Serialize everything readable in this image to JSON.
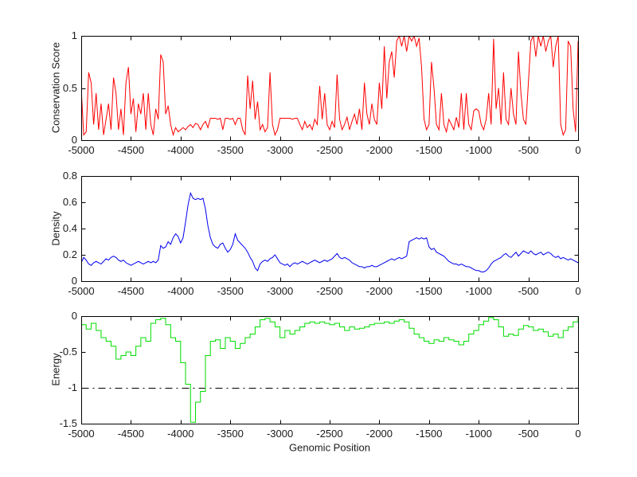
{
  "figure": {
    "background": "#ffffff"
  },
  "chart_data": [
    {
      "id": "conservation",
      "type": "line",
      "title": "",
      "ylabel": "Conservation Score",
      "xlabel": "",
      "xlim": [
        -5000,
        0
      ],
      "ylim": [
        0,
        1
      ],
      "xticks": [
        -5000,
        -4500,
        -4000,
        -3500,
        -3000,
        -2500,
        -2000,
        -1500,
        -1000,
        -500,
        0
      ],
      "yticks": [
        0,
        0.5,
        1
      ],
      "line_color": "#ff0000",
      "grid": false,
      "legend": null,
      "x_start": -5000,
      "x_step": 25,
      "values": [
        0.5,
        0.05,
        0.08,
        0.65,
        0.55,
        0.15,
        0.45,
        0.1,
        0.35,
        0.05,
        0.2,
        0.35,
        0.1,
        0.6,
        0.45,
        0.1,
        0.3,
        0.05,
        0.55,
        0.7,
        0.25,
        0.4,
        0.08,
        0.35,
        0.25,
        0.45,
        0.1,
        0.45,
        0.15,
        0.05,
        0.3,
        0.2,
        0.82,
        0.75,
        0.25,
        0.33,
        0.15,
        0.05,
        0.12,
        0.08,
        0.1,
        0.12,
        0.1,
        0.13,
        0.15,
        0.12,
        0.16,
        0.15,
        0.1,
        0.15,
        0.18,
        0.12,
        0.21,
        0.21,
        0.21,
        0.2,
        0.21,
        0.1,
        0.21,
        0.21,
        0.2,
        0.21,
        0.15,
        0.21,
        0.21,
        0.1,
        0.05,
        0.62,
        0.3,
        0.57,
        0.2,
        0.37,
        0.1,
        0.15,
        0.08,
        0.12,
        0.65,
        0.15,
        0.05,
        0.1,
        0.21,
        0.21,
        0.21,
        0.21,
        0.21,
        0.2,
        0.21,
        0.21,
        0.15,
        0.1,
        0.18,
        0.12,
        0.15,
        0.1,
        0.2,
        0.15,
        0.52,
        0.2,
        0.45,
        0.15,
        0.1,
        0.18,
        0.12,
        0.63,
        0.2,
        0.1,
        0.15,
        0.22,
        0.1,
        0.18,
        0.25,
        0.15,
        0.3,
        0.1,
        0.55,
        0.25,
        0.15,
        0.35,
        0.2,
        0.15,
        0.55,
        0.3,
        0.9,
        0.4,
        0.75,
        0.85,
        0.6,
        0.95,
        1.0,
        0.9,
        1.0,
        0.85,
        1.0,
        0.95,
        1.0,
        0.9,
        0.98,
        0.7,
        0.2,
        0.1,
        0.15,
        0.75,
        0.5,
        0.15,
        0.1,
        0.45,
        0.15,
        0.08,
        0.2,
        0.15,
        0.1,
        0.22,
        0.12,
        0.45,
        0.1,
        0.45,
        0.15,
        0.1,
        0.28,
        0.3,
        0.28,
        0.15,
        0.1,
        0.2,
        0.45,
        0.15,
        0.97,
        0.3,
        0.5,
        0.15,
        0.65,
        0.2,
        0.15,
        0.5,
        0.25,
        0.15,
        0.85,
        0.45,
        0.2,
        0.15,
        0.55,
        0.95,
        1.0,
        0.8,
        1.0,
        0.9,
        1.0,
        0.85,
        0.95,
        1.0,
        0.7,
        0.9,
        1.0,
        0.15,
        0.05,
        0.1,
        0.95,
        0.9,
        0.3,
        0.08,
        0.95
      ]
    },
    {
      "id": "density",
      "type": "line",
      "title": "",
      "ylabel": "Density",
      "xlabel": "",
      "xlim": [
        -5000,
        0
      ],
      "ylim": [
        0,
        0.8
      ],
      "xticks": [
        -5000,
        -4500,
        -4000,
        -3500,
        -3000,
        -2500,
        -2000,
        -1500,
        -1000,
        -500,
        0
      ],
      "yticks": [
        0,
        0.2,
        0.4,
        0.6,
        0.8
      ],
      "line_color": "#0000ee",
      "grid": false,
      "legend": null,
      "x_start": -5000,
      "x_step": 25,
      "values": [
        0.14,
        0.18,
        0.16,
        0.13,
        0.12,
        0.14,
        0.15,
        0.14,
        0.13,
        0.15,
        0.17,
        0.16,
        0.18,
        0.19,
        0.18,
        0.16,
        0.15,
        0.16,
        0.14,
        0.13,
        0.12,
        0.13,
        0.14,
        0.15,
        0.14,
        0.13,
        0.14,
        0.15,
        0.14,
        0.15,
        0.14,
        0.16,
        0.27,
        0.25,
        0.26,
        0.3,
        0.28,
        0.33,
        0.36,
        0.34,
        0.29,
        0.33,
        0.45,
        0.58,
        0.67,
        0.63,
        0.62,
        0.63,
        0.62,
        0.63,
        0.55,
        0.42,
        0.33,
        0.28,
        0.26,
        0.25,
        0.28,
        0.29,
        0.25,
        0.22,
        0.24,
        0.28,
        0.36,
        0.31,
        0.29,
        0.27,
        0.25,
        0.22,
        0.18,
        0.15,
        0.1,
        0.08,
        0.13,
        0.15,
        0.16,
        0.15,
        0.17,
        0.18,
        0.2,
        0.17,
        0.14,
        0.13,
        0.12,
        0.13,
        0.11,
        0.13,
        0.14,
        0.13,
        0.14,
        0.15,
        0.14,
        0.13,
        0.14,
        0.15,
        0.16,
        0.15,
        0.14,
        0.15,
        0.16,
        0.15,
        0.16,
        0.17,
        0.19,
        0.21,
        0.18,
        0.17,
        0.18,
        0.17,
        0.16,
        0.14,
        0.13,
        0.12,
        0.11,
        0.11,
        0.1,
        0.11,
        0.11,
        0.12,
        0.11,
        0.11,
        0.12,
        0.13,
        0.14,
        0.15,
        0.16,
        0.17,
        0.16,
        0.17,
        0.18,
        0.17,
        0.18,
        0.19,
        0.3,
        0.31,
        0.32,
        0.33,
        0.32,
        0.33,
        0.32,
        0.33,
        0.26,
        0.24,
        0.25,
        0.22,
        0.21,
        0.2,
        0.19,
        0.17,
        0.15,
        0.14,
        0.13,
        0.13,
        0.12,
        0.13,
        0.12,
        0.11,
        0.11,
        0.1,
        0.09,
        0.08,
        0.08,
        0.07,
        0.07,
        0.08,
        0.1,
        0.13,
        0.15,
        0.16,
        0.17,
        0.18,
        0.2,
        0.21,
        0.19,
        0.18,
        0.2,
        0.22,
        0.19,
        0.21,
        0.23,
        0.22,
        0.21,
        0.23,
        0.21,
        0.2,
        0.21,
        0.22,
        0.2,
        0.21,
        0.22,
        0.21,
        0.19,
        0.18,
        0.19,
        0.17,
        0.18,
        0.17,
        0.16,
        0.17,
        0.16,
        0.15,
        0.14
      ]
    },
    {
      "id": "energy",
      "type": "step",
      "title": "",
      "ylabel": "Energy",
      "xlabel": "Genomic Position",
      "xlim": [
        -5000,
        0
      ],
      "ylim": [
        -1.5,
        0
      ],
      "xticks": [
        -5000,
        -4500,
        -4000,
        -3500,
        -3000,
        -2500,
        -2000,
        -1500,
        -1000,
        -500,
        0
      ],
      "yticks": [
        -1.5,
        -1,
        -0.5,
        0
      ],
      "line_color": "#00dd00",
      "grid": false,
      "legend": null,
      "threshold": {
        "value": -1,
        "color": "#000000",
        "style": "dash-dot"
      },
      "x_start": -5000,
      "x_step": 50,
      "values": [
        -0.12,
        -0.18,
        -0.1,
        -0.2,
        -0.3,
        -0.35,
        -0.42,
        -0.6,
        -0.55,
        -0.5,
        -0.55,
        -0.42,
        -0.3,
        -0.35,
        -0.1,
        -0.05,
        -0.03,
        -0.12,
        -0.3,
        -0.35,
        -0.65,
        -0.95,
        -1.48,
        -1.2,
        -1.05,
        -0.55,
        -0.35,
        -0.33,
        -0.45,
        -0.3,
        -0.35,
        -0.45,
        -0.38,
        -0.3,
        -0.25,
        -0.15,
        -0.05,
        -0.03,
        -0.08,
        -0.15,
        -0.3,
        -0.2,
        -0.25,
        -0.2,
        -0.15,
        -0.1,
        -0.08,
        -0.1,
        -0.08,
        -0.1,
        -0.12,
        -0.1,
        -0.15,
        -0.2,
        -0.15,
        -0.18,
        -0.17,
        -0.15,
        -0.12,
        -0.1,
        -0.1,
        -0.08,
        -0.1,
        -0.07,
        -0.05,
        -0.08,
        -0.17,
        -0.25,
        -0.3,
        -0.35,
        -0.38,
        -0.33,
        -0.35,
        -0.3,
        -0.33,
        -0.35,
        -0.4,
        -0.35,
        -0.25,
        -0.2,
        -0.12,
        -0.07,
        -0.02,
        -0.05,
        -0.15,
        -0.28,
        -0.25,
        -0.27,
        -0.18,
        -0.13,
        -0.15,
        -0.2,
        -0.18,
        -0.22,
        -0.28,
        -0.25,
        -0.3,
        -0.2,
        -0.15,
        -0.08,
        -0.02
      ]
    }
  ]
}
